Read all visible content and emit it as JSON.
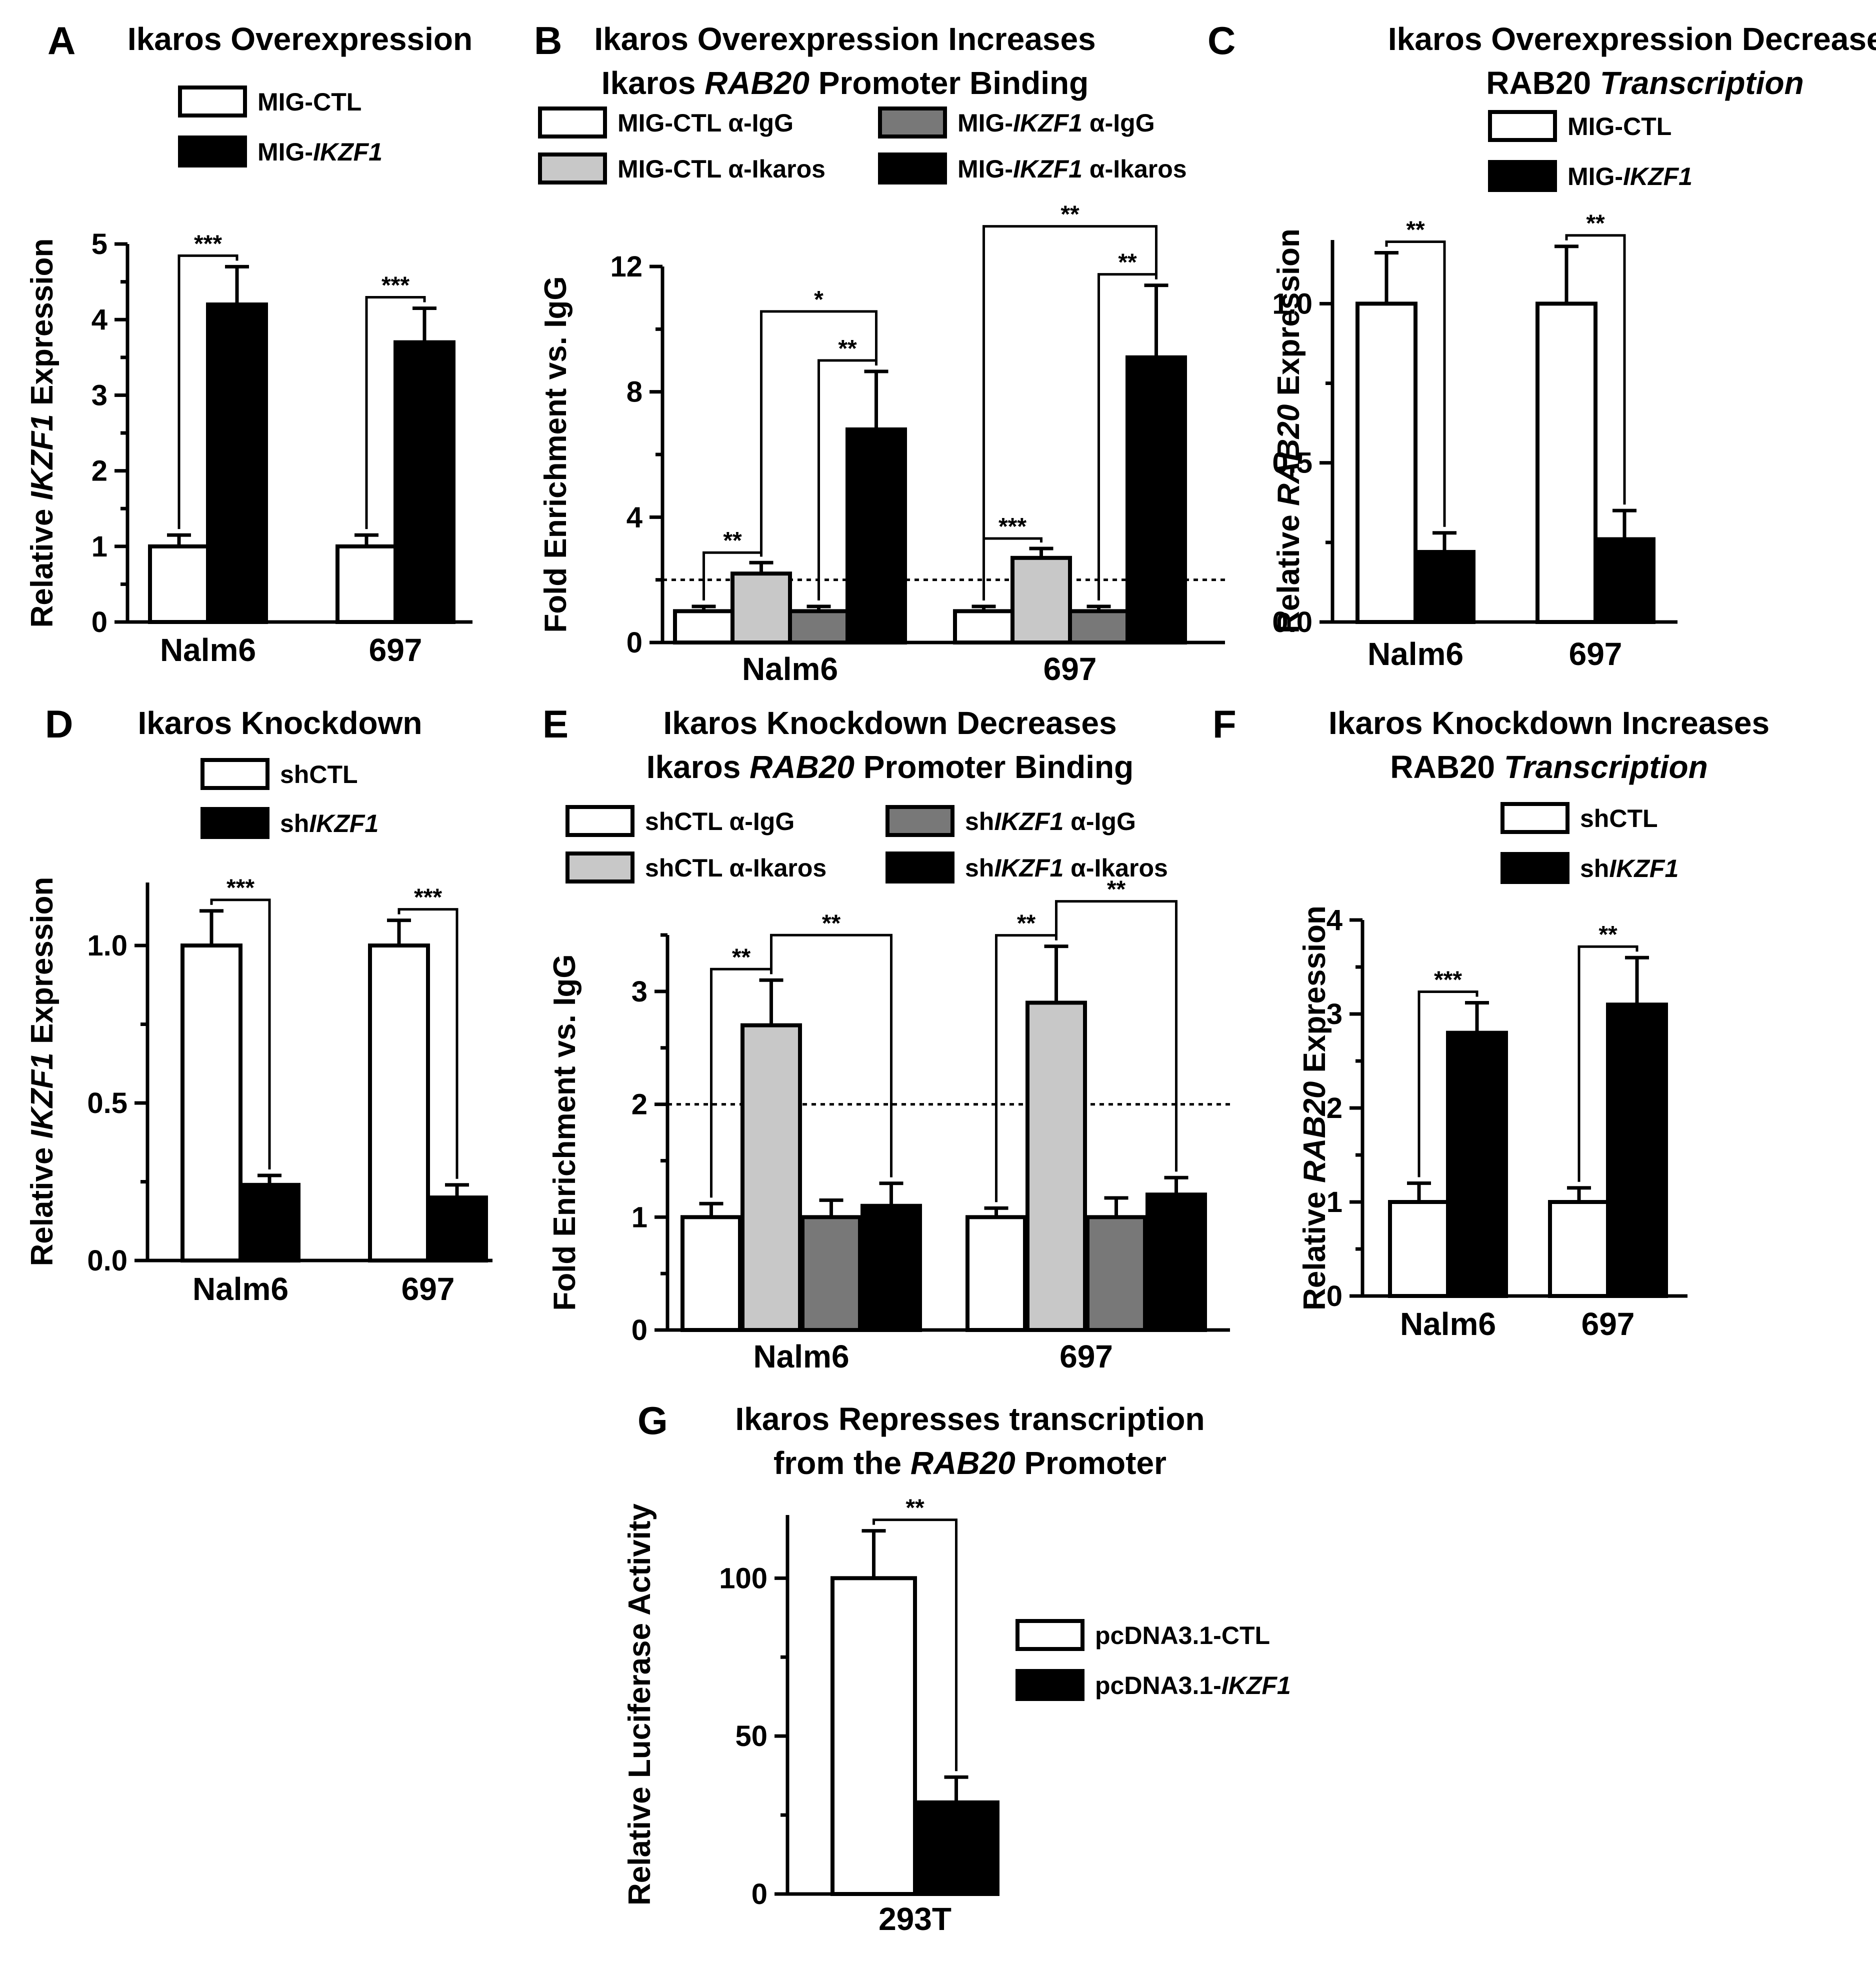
{
  "figure": {
    "colors": {
      "ctl": "#ffffff",
      "treat": "#000000",
      "ikaros_ctl": "#c8c8c8",
      "igg_treat": "#787878",
      "edge": "#000000"
    }
  },
  "chart_data": [
    {
      "id": "A",
      "type": "bar",
      "panel_label": "A",
      "title_lines": [
        [
          "Ikaros Overexpression"
        ]
      ],
      "ylabel": [
        "Relative ",
        "IKZF1",
        " Expression"
      ],
      "ylim": [
        0,
        5
      ],
      "yticks": [
        "0",
        "1",
        "2",
        "3",
        "4",
        "5"
      ],
      "categories": [
        "Nalm6",
        "697"
      ],
      "series": [
        {
          "name": "MIG-CTL",
          "name_parts": [
            "MIG-CTL"
          ],
          "color": "ctl",
          "values": [
            1.0,
            1.0
          ],
          "errors": [
            0.15,
            0.15
          ]
        },
        {
          "name": "MIG-IKZF1",
          "name_parts": [
            "MIG-",
            "IKZF1"
          ],
          "color": "treat",
          "values": [
            4.2,
            3.7
          ],
          "errors": [
            0.5,
            0.45
          ]
        }
      ],
      "annotations": [
        {
          "category": 0,
          "from": 0,
          "to": 1,
          "label": "***"
        },
        {
          "category": 1,
          "from": 0,
          "to": 1,
          "label": "***"
        }
      ]
    },
    {
      "id": "B",
      "type": "bar",
      "panel_label": "B",
      "title_lines": [
        [
          "Ikaros Overexpression Increases"
        ],
        [
          "Ikaros ",
          "RAB20",
          " Promoter Binding"
        ]
      ],
      "ylabel": [
        "Fold Enrichment vs. IgG"
      ],
      "ylim": [
        0,
        12
      ],
      "yticks": [
        "0",
        "4",
        "8",
        "12"
      ],
      "threshold": 2,
      "categories": [
        "Nalm6",
        "697"
      ],
      "series": [
        {
          "name": "MIG-CTL α-IgG",
          "name_parts": [
            "MIG-CTL α-IgG"
          ],
          "color": "ctl",
          "values": [
            1.0,
            1.0
          ],
          "errors": [
            0.15,
            0.15
          ]
        },
        {
          "name": "MIG-CTL α-Ikaros",
          "name_parts": [
            "MIG-CTL α-Ikaros"
          ],
          "color": "ikaros_ctl",
          "values": [
            2.2,
            2.7
          ],
          "errors": [
            0.35,
            0.3
          ]
        },
        {
          "name": "MIG-IKZF1 α-IgG",
          "name_parts": [
            "MIG-",
            "IKZF1",
            " α-IgG"
          ],
          "color": "igg_treat",
          "values": [
            1.0,
            1.0
          ],
          "errors": [
            0.15,
            0.15
          ]
        },
        {
          "name": "MIG-IKZF1 α-Ikaros",
          "name_parts": [
            "MIG-",
            "IKZF1",
            " α-Ikaros"
          ],
          "color": "treat",
          "values": [
            6.8,
            9.1
          ],
          "errors": [
            1.85,
            2.3
          ]
        }
      ],
      "annotations": [
        {
          "category": 0,
          "from": 0,
          "to": 1,
          "label": "**"
        },
        {
          "category": 0,
          "from": 2,
          "to": 3,
          "label": "**"
        },
        {
          "category": 0,
          "from": 1,
          "to": 3,
          "label": "*"
        },
        {
          "category": 1,
          "from": 0,
          "to": 1,
          "label": "***"
        },
        {
          "category": 1,
          "from": 2,
          "to": 3,
          "label": "**"
        },
        {
          "category": 1,
          "from": 0,
          "to": 3,
          "label": "**"
        }
      ]
    },
    {
      "id": "C",
      "type": "bar",
      "panel_label": "C",
      "title_lines": [
        [
          "Ikaros Overexpression Decreases"
        ],
        [
          "RAB20",
          " Transcription"
        ]
      ],
      "ylabel": [
        "Relative ",
        "RAB20",
        " Expression"
      ],
      "ylim": [
        0,
        1.2
      ],
      "yticks": [
        "0.0",
        "0.5",
        "1.0"
      ],
      "categories": [
        "Nalm6",
        "697"
      ],
      "series": [
        {
          "name": "MIG-CTL",
          "name_parts": [
            "MIG-CTL"
          ],
          "color": "ctl",
          "values": [
            1.0,
            1.0
          ],
          "errors": [
            0.16,
            0.18
          ]
        },
        {
          "name": "MIG-IKZF1",
          "name_parts": [
            "MIG-",
            "IKZF1"
          ],
          "color": "treat",
          "values": [
            0.22,
            0.26
          ],
          "errors": [
            0.06,
            0.09
          ]
        }
      ],
      "annotations": [
        {
          "category": 0,
          "from": 0,
          "to": 1,
          "label": "**"
        },
        {
          "category": 1,
          "from": 0,
          "to": 1,
          "label": "**"
        }
      ]
    },
    {
      "id": "D",
      "type": "bar",
      "panel_label": "D",
      "title_lines": [
        [
          "Ikaros Knockdown"
        ]
      ],
      "ylabel": [
        "Relative ",
        "IKZF1",
        " Expression"
      ],
      "ylim": [
        0,
        1.2
      ],
      "yticks": [
        "0.0",
        "0.5",
        "1.0"
      ],
      "categories": [
        "Nalm6",
        "697"
      ],
      "series": [
        {
          "name": "shCTL",
          "name_parts": [
            "shCTL"
          ],
          "color": "ctl",
          "values": [
            1.0,
            1.0
          ],
          "errors": [
            0.11,
            0.08
          ]
        },
        {
          "name": "shIKZF1",
          "name_parts": [
            "sh",
            "IKZF1"
          ],
          "color": "treat",
          "values": [
            0.24,
            0.2
          ],
          "errors": [
            0.03,
            0.04
          ]
        }
      ],
      "annotations": [
        {
          "category": 0,
          "from": 0,
          "to": 1,
          "label": "***"
        },
        {
          "category": 1,
          "from": 0,
          "to": 1,
          "label": "***"
        }
      ]
    },
    {
      "id": "E",
      "type": "bar",
      "panel_label": "E",
      "title_lines": [
        [
          "Ikaros Knockdown Decreases"
        ],
        [
          "Ikaros ",
          "RAB20",
          " Promoter Binding"
        ]
      ],
      "ylabel": [
        "Fold Enrichment vs. IgG"
      ],
      "ylim": [
        0,
        3.5
      ],
      "yticks": [
        "0",
        "1",
        "2",
        "3"
      ],
      "threshold": 2,
      "categories": [
        "Nalm6",
        "697"
      ],
      "series": [
        {
          "name": "shCTL α-IgG",
          "name_parts": [
            "shCTL α-IgG"
          ],
          "color": "ctl",
          "values": [
            1.0,
            1.0
          ],
          "errors": [
            0.12,
            0.08
          ]
        },
        {
          "name": "shCTL α-Ikaros",
          "name_parts": [
            "shCTL α-Ikaros"
          ],
          "color": "ikaros_ctl",
          "values": [
            2.7,
            2.9
          ],
          "errors": [
            0.4,
            0.5
          ]
        },
        {
          "name": "shIKZF1 α-IgG",
          "name_parts": [
            "sh",
            "IKZF1",
            " α-IgG"
          ],
          "color": "igg_treat",
          "values": [
            1.0,
            1.0
          ],
          "errors": [
            0.15,
            0.17
          ]
        },
        {
          "name": "shIKZF1 α-Ikaros",
          "name_parts": [
            "sh",
            "IKZF1",
            " α-Ikaros"
          ],
          "color": "treat",
          "values": [
            1.1,
            1.2
          ],
          "errors": [
            0.2,
            0.15
          ]
        }
      ],
      "annotations": [
        {
          "category": 0,
          "from": 0,
          "to": 1,
          "label": "**"
        },
        {
          "category": 0,
          "from": 1,
          "to": 3,
          "label": "**"
        },
        {
          "category": 1,
          "from": 0,
          "to": 1,
          "label": "**"
        },
        {
          "category": 1,
          "from": 1,
          "to": 3,
          "label": "**"
        }
      ]
    },
    {
      "id": "F",
      "type": "bar",
      "panel_label": "F",
      "title_lines": [
        [
          "Ikaros Knockdown Increases"
        ],
        [
          "RAB20",
          " Transcription"
        ]
      ],
      "ylabel": [
        "Relative ",
        "RAB20",
        " Expression"
      ],
      "ylim": [
        0,
        4
      ],
      "yticks": [
        "0",
        "1",
        "2",
        "3",
        "4"
      ],
      "categories": [
        "Nalm6",
        "697"
      ],
      "series": [
        {
          "name": "shCTL",
          "name_parts": [
            "shCTL"
          ],
          "color": "ctl",
          "values": [
            1.0,
            1.0
          ],
          "errors": [
            0.2,
            0.15
          ]
        },
        {
          "name": "shIKZF1",
          "name_parts": [
            "sh",
            "IKZF1"
          ],
          "color": "treat",
          "values": [
            2.8,
            3.1
          ],
          "errors": [
            0.32,
            0.5
          ]
        }
      ],
      "annotations": [
        {
          "category": 0,
          "from": 0,
          "to": 1,
          "label": "***"
        },
        {
          "category": 1,
          "from": 0,
          "to": 1,
          "label": "**"
        }
      ]
    },
    {
      "id": "G",
      "type": "bar",
      "panel_label": "G",
      "title_lines": [
        [
          "Ikaros Represses transcription"
        ],
        [
          "from the ",
          "RAB20",
          " Promoter"
        ]
      ],
      "ylabel": [
        "Relative Luciferase Activity"
      ],
      "ylim": [
        0,
        120
      ],
      "yticks": [
        "0",
        "50",
        "100"
      ],
      "categories": [
        "293T"
      ],
      "series": [
        {
          "name": "pcDNA3.1-CTL",
          "name_parts": [
            "pcDNA3.1-CTL"
          ],
          "color": "ctl",
          "values": [
            100
          ],
          "errors": [
            15
          ]
        },
        {
          "name": "pcDNA3.1-IKZF1",
          "name_parts": [
            "pcDNA3.1-",
            "IKZF1"
          ],
          "color": "treat",
          "values": [
            29
          ],
          "errors": [
            8
          ]
        }
      ],
      "annotations": [
        {
          "category": 0,
          "from": 0,
          "to": 1,
          "label": "**"
        }
      ]
    }
  ]
}
